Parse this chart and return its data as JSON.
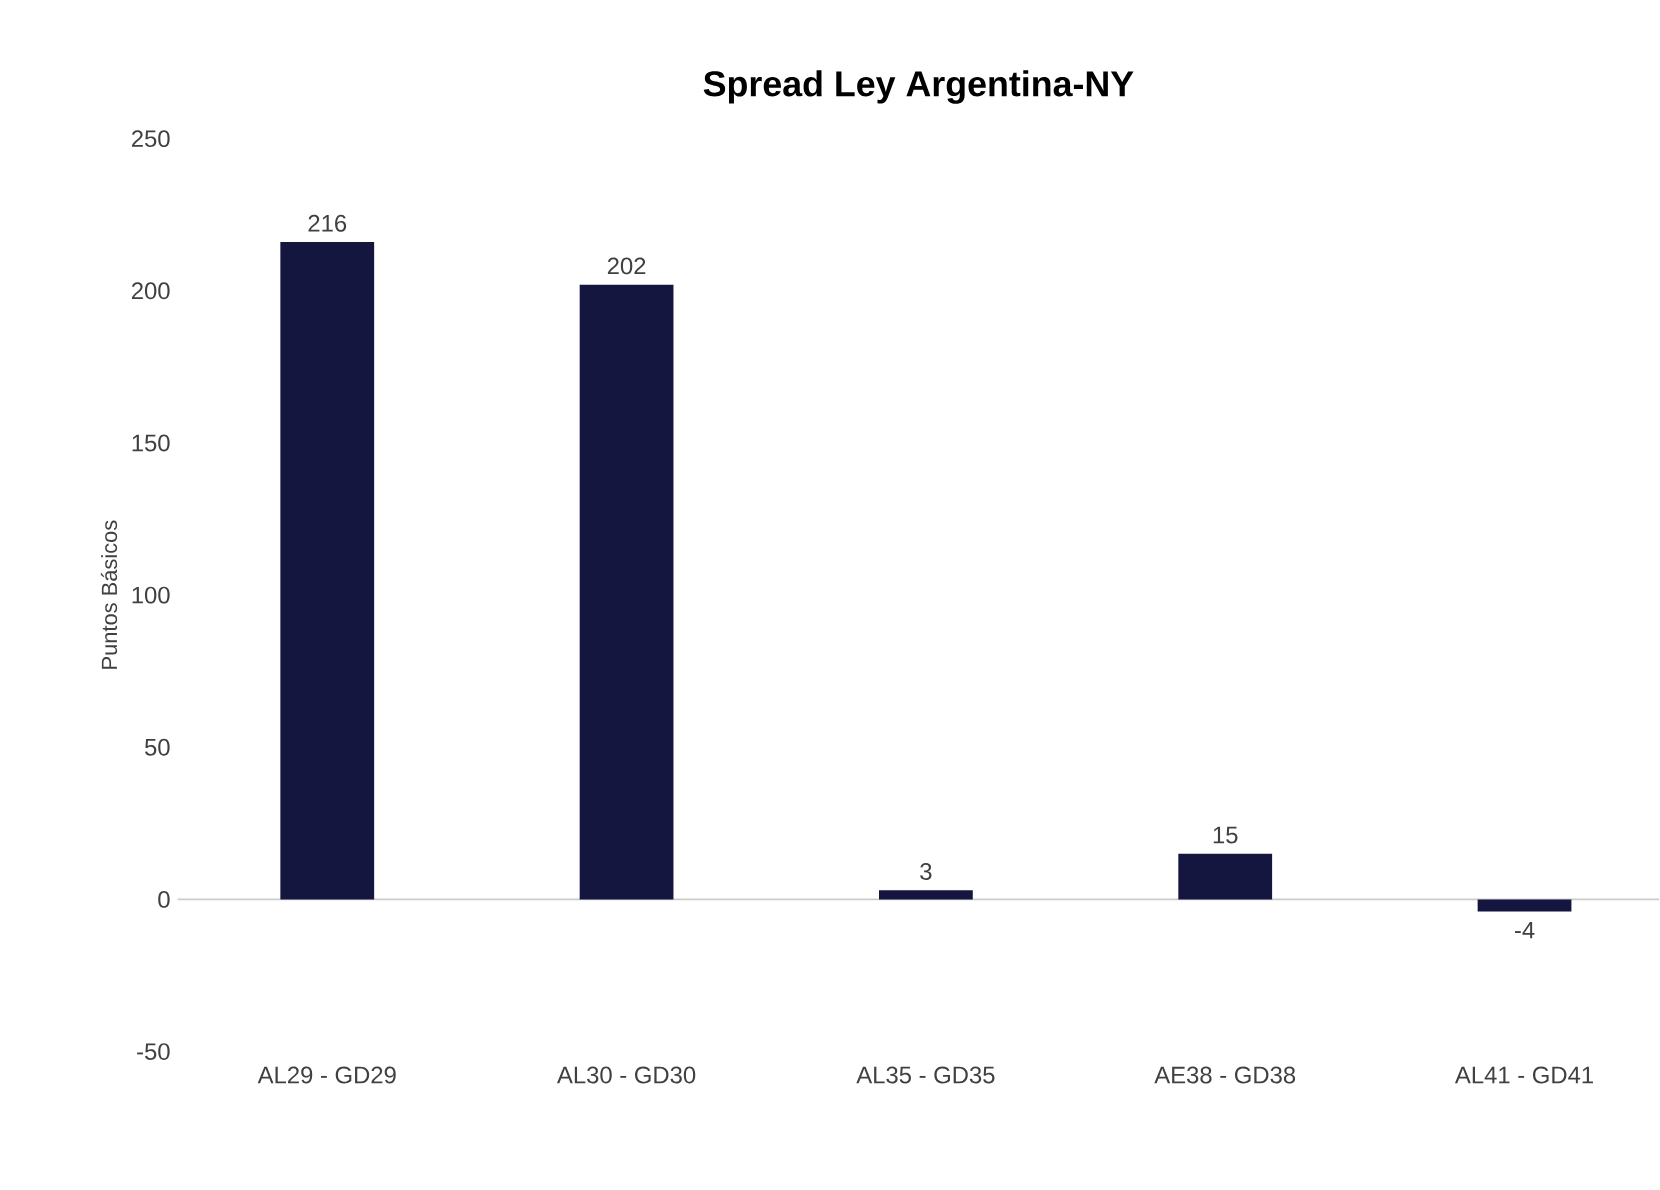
{
  "chart_data": {
    "type": "bar",
    "title": "Spread Ley Argentina-NY",
    "ylabel": "Puntos Básicos",
    "categories": [
      "AL29 - GD29",
      "AL30 - GD30",
      "AL35 - GD35",
      "AE38 - GD38",
      "AL41 - GD41"
    ],
    "values": [
      216,
      202,
      3,
      15,
      -4
    ],
    "color": "#14163f",
    "ylim": [
      -50,
      250
    ],
    "yticks": [
      -50,
      0,
      50,
      100,
      150,
      200,
      250
    ],
    "data_labels": true
  }
}
